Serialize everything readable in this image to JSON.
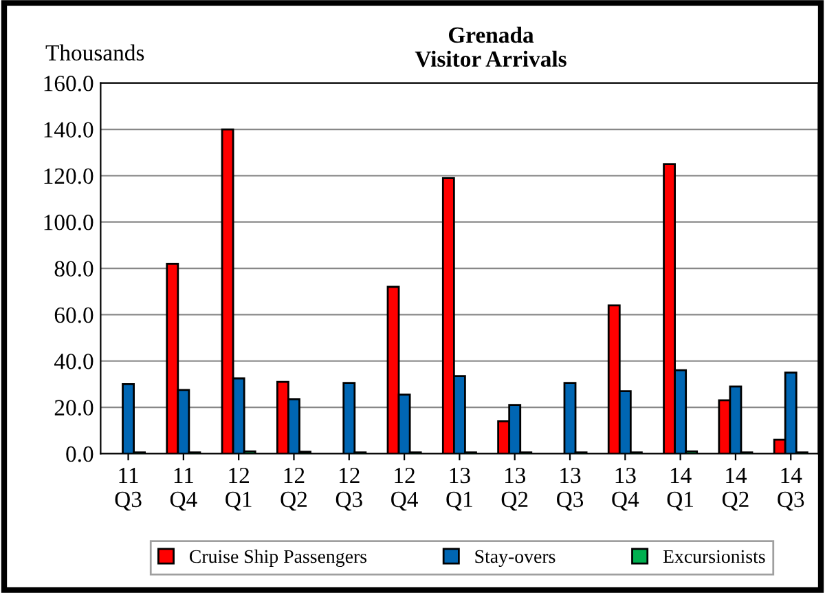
{
  "chart_data": {
    "type": "bar",
    "title": "Grenada\nVisitor Arrivals",
    "ylabel": "Thousands",
    "categories": [
      "11\nQ3",
      "11\nQ4",
      "12\nQ1",
      "12\nQ2",
      "12\nQ3",
      "12\nQ4",
      "13\nQ1",
      "13\nQ2",
      "13\nQ3",
      "13\nQ4",
      "14\nQ1",
      "14\nQ2",
      "14\nQ3"
    ],
    "series": [
      {
        "name": "Cruise Ship Passengers",
        "color": "#ff0000",
        "values": [
          null,
          82,
          140,
          31,
          null,
          72,
          119,
          14,
          null,
          64,
          125,
          23,
          6
        ]
      },
      {
        "name": "Stay-overs",
        "color": "#0066b3",
        "values": [
          30,
          27.5,
          32.5,
          23.5,
          30.5,
          25.5,
          33.5,
          21,
          30.5,
          27,
          36,
          29,
          35
        ]
      },
      {
        "name": "Excursionists",
        "color": "#00b050",
        "values": [
          0.5,
          0.5,
          1,
          0.8,
          0.5,
          0.5,
          0.5,
          0.5,
          0.5,
          0.5,
          1,
          0.5,
          0.5
        ]
      }
    ],
    "ylim": [
      0,
      160
    ],
    "yticks": [
      {
        "value": 0,
        "label": "0.0"
      },
      {
        "value": 20,
        "label": "20.0"
      },
      {
        "value": 40,
        "label": "40.0"
      },
      {
        "value": 60,
        "label": "60.0"
      },
      {
        "value": 80,
        "label": "80.0"
      },
      {
        "value": 100,
        "label": "100.0"
      },
      {
        "value": 120,
        "label": "120.0"
      },
      {
        "value": 140,
        "label": "140.0"
      },
      {
        "value": 160,
        "label": "160.0"
      }
    ],
    "grid": "y",
    "legend": "bottom"
  }
}
